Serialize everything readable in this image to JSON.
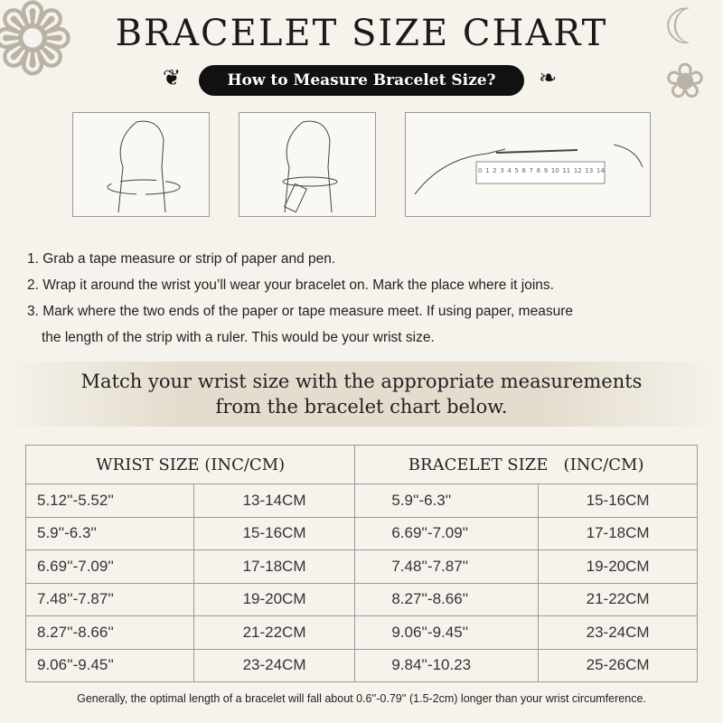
{
  "title": "BRACELET SIZE CHART",
  "subtitle": "How to Measure Bracelet Size?",
  "ruler_labels": [
    "0",
    "1",
    "2",
    "3",
    "4",
    "5",
    "6",
    "7",
    "8",
    "9",
    "10",
    "11",
    "12",
    "13",
    "14"
  ],
  "steps": [
    "1. Grab a tape measure or strip of paper and pen.",
    "2. Wrap it around the wrist you’ll wear your bracelet on. Mark the place where it joins.",
    "3. Mark where the two ends of the paper or tape measure meet. If using paper, measure",
    "the length of the strip with a ruler. This would be your wrist size."
  ],
  "band": {
    "line1": "Match your wrist size with the appropriate measurements",
    "line2": "from the bracelet chart below."
  },
  "table": {
    "headers": [
      "WRIST SIZE (INC/CM)",
      "BRACELET SIZE   (INC/CM)"
    ],
    "rows": [
      [
        "5.12''-5.52''",
        "13-14CM",
        "5.9''-6.3''",
        "15-16CM"
      ],
      [
        "5.9''-6.3''",
        "15-16CM",
        "6.69''-7.09''",
        "17-18CM"
      ],
      [
        "6.69''-7.09''",
        "17-18CM",
        "7.48''-7.87''",
        "19-20CM"
      ],
      [
        "7.48''-7.87''",
        "19-20CM",
        "8.27''-8.66''",
        "21-22CM"
      ],
      [
        "8.27''-8.66''",
        "21-22CM",
        "9.06''-9.45''",
        "23-24CM"
      ],
      [
        "9.06''-9.45''",
        "23-24CM",
        "9.84''-10.23",
        "25-26CM"
      ]
    ]
  },
  "footnote": "Generally, the optimal length of a bracelet will fall about 0.6''-0.79'' (1.5-2cm) longer than your wrist circumference."
}
